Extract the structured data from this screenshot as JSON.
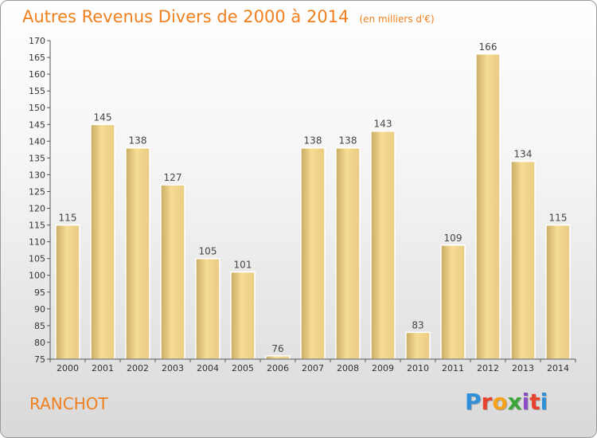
{
  "chart_data": {
    "type": "bar",
    "title": "Autres Revenus Divers de 2000 à 2014",
    "unit": "(en milliers d'€)",
    "categories": [
      "2000",
      "2001",
      "2002",
      "2003",
      "2004",
      "2005",
      "2006",
      "2007",
      "2008",
      "2009",
      "2010",
      "2011",
      "2012",
      "2013",
      "2014"
    ],
    "values": [
      115,
      145,
      138,
      127,
      105,
      101,
      76,
      138,
      138,
      143,
      83,
      109,
      166,
      134,
      115
    ],
    "ylim": [
      75,
      170
    ],
    "ytick_step": 5,
    "grid": false,
    "bar_color": "#f0d890"
  },
  "footer": {
    "town": "RANCHOT",
    "brand_letters": [
      {
        "ch": "P",
        "color": "#2f8fd8"
      },
      {
        "ch": "r",
        "color": "#e8432e"
      },
      {
        "ch": "o",
        "color": "#f5a31a"
      },
      {
        "ch": "x",
        "color": "#3aa63a"
      },
      {
        "ch": "i",
        "color": "#8a4fc7"
      },
      {
        "ch": "t",
        "color": "#e8432e"
      },
      {
        "ch": "i",
        "color": "#2f8fd8"
      }
    ]
  },
  "colors": {
    "accent": "#f07f1e",
    "axis": "#555555"
  }
}
